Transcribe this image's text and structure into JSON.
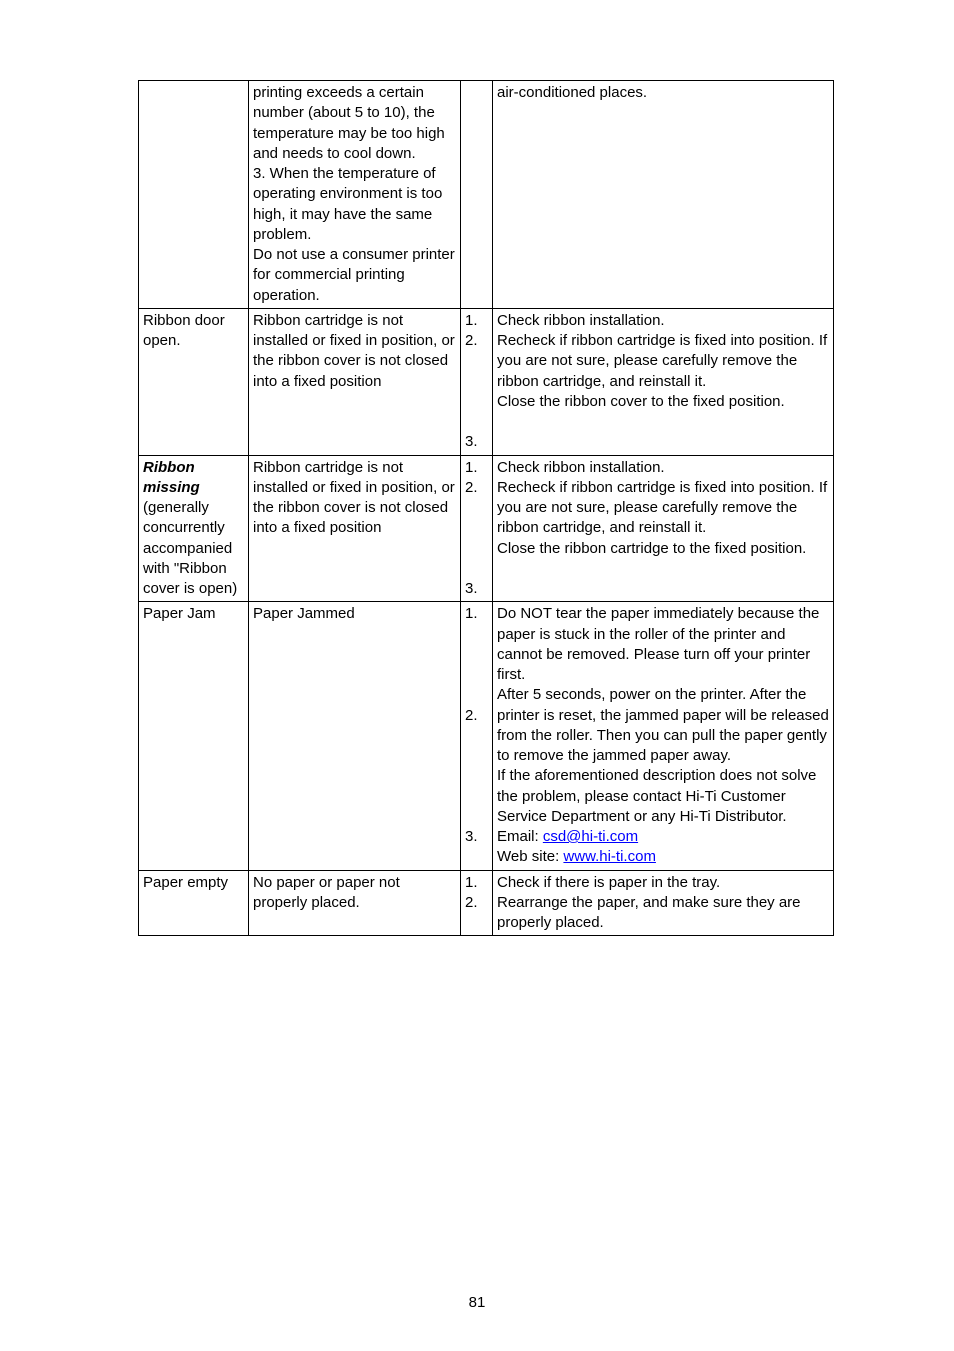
{
  "page_number": "81",
  "row1": {
    "cause": "printing exceeds a certain number (about 5 to 10), the temperature may be too high and needs to cool down.\n3.    When the temperature of operating environment is too high, it may have the same problem.\nDo not use a consumer printer for commercial printing operation.",
    "solution": "air-conditioned places."
  },
  "row2": {
    "issue": "Ribbon door open.",
    "cause": "Ribbon cartridge is not installed or fixed in position, or the ribbon cover is not closed into a fixed position",
    "n1": "1.",
    "s1": "Check ribbon installation.",
    "n2": "2.",
    "s2": "Recheck if ribbon cartridge is fixed into position. If you are not sure, please carefully remove the ribbon cartridge, and reinstall it.",
    "n3": "3.",
    "s3": "Close the ribbon cover to the fixed position."
  },
  "row3": {
    "issue_bold": "Ribbon missing",
    "issue_rest": " (generally concurrently accompanied with \"Ribbon cover is open)",
    "cause": "Ribbon cartridge is not installed or fixed in position, or the ribbon cover is not closed into a fixed position",
    "n1": "1.",
    "s1": "Check ribbon installation.",
    "n2": "2.",
    "s2": "Recheck if ribbon cartridge is fixed into position. If you are not sure, please carefully remove the ribbon cartridge, and reinstall it.",
    "n3": "3.",
    "s3": "Close the ribbon cartridge to the fixed position."
  },
  "row4": {
    "issue": "Paper Jam",
    "cause": "Paper Jammed",
    "n1": "1.",
    "s1": "Do NOT tear the paper immediately because the paper is stuck in the roller of the printer and cannot be removed.    Please turn off your printer first.",
    "n2": "2.",
    "s2": "After 5 seconds, power on the printer. After the printer is reset, the jammed paper will be released from the roller. Then you can pull the paper gently to remove the jammed paper away.",
    "n3": "3.",
    "s3_pre": "If the aforementioned description does not solve the problem, please contact Hi-Ti Customer Service Department or any Hi-Ti Distributor. Email: ",
    "s3_email": "csd@hi-ti.com",
    "s3_mid": "Web site: ",
    "s3_site": "www.hi-ti.com"
  },
  "row5": {
    "issue": "Paper empty",
    "cause": "No paper or paper not properly placed.",
    "n1": "1.",
    "s1": "Check if there is paper in the tray.",
    "n2": "2.",
    "s2": "Rearrange the paper, and make sure they are properly placed."
  }
}
